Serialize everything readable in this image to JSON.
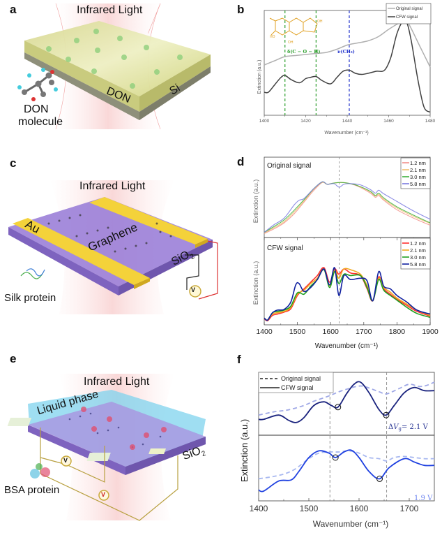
{
  "panels": {
    "a": {
      "label": "a",
      "light_label": "Infrared Light",
      "substrate_label": "Si",
      "layer_label": "DON",
      "molecule_label_line1": "DON",
      "molecule_label_line2": "molecule"
    },
    "c": {
      "label": "c",
      "light_label": "Infrared Light",
      "electrode_label": "Au",
      "sheet_label": "Graphene",
      "substrate_label": "SiO",
      "substrate_sub": "2",
      "protein_label": "Silk protein",
      "meter_label": "V"
    },
    "e": {
      "label": "e",
      "light_label": "Infrared Light",
      "liquid_label": "Liquid phase",
      "substrate_label": "SiO",
      "substrate_sub": "2",
      "protein_label": "BSA protein",
      "meter_label": "V"
    },
    "b": {
      "label": "b"
    },
    "d": {
      "label": "d"
    },
    "f": {
      "label": "f"
    }
  },
  "chart_data": [
    {
      "id": "b",
      "type": "line",
      "xlabel": "Wavenumber (cm⁻¹)",
      "ylabel": "Extinction (a.u.)",
      "xlim": [
        1400,
        1480
      ],
      "xticks": [
        1400,
        1420,
        1440,
        1460,
        1480
      ],
      "ylim": [
        0,
        1
      ],
      "legend": {
        "position": "top-right",
        "entries": [
          "Original signal",
          "CFW signal"
        ]
      },
      "annotations": [
        {
          "text": "δ(C − O − H)",
          "color": "#2a9d2a"
        },
        {
          "text": "ν(CH₃)",
          "color": "#2233cc"
        }
      ],
      "vlines": [
        {
          "x": 1410,
          "color": "#2a9d2a"
        },
        {
          "x": 1425,
          "color": "#2a9d2a"
        },
        {
          "x": 1441,
          "color": "#2233cc"
        }
      ],
      "series": [
        {
          "name": "Original signal",
          "color": "#b0b0b0",
          "x": [
            1400,
            1405,
            1410,
            1415,
            1420,
            1425,
            1430,
            1435,
            1440,
            1445,
            1450,
            1455,
            1460,
            1465,
            1468,
            1470,
            1475,
            1480
          ],
          "y": [
            0.48,
            0.52,
            0.56,
            0.57,
            0.58,
            0.59,
            0.6,
            0.63,
            0.67,
            0.69,
            0.71,
            0.75,
            0.82,
            0.88,
            0.9,
            0.86,
            0.66,
            0.46
          ]
        },
        {
          "name": "CFW signal",
          "color": "#404040",
          "x": [
            1400,
            1402,
            1405,
            1408,
            1410,
            1413,
            1417,
            1420,
            1422,
            1425,
            1428,
            1432,
            1435,
            1438,
            1441,
            1444,
            1447,
            1450,
            1454,
            1458,
            1461,
            1464,
            1467,
            1469,
            1471,
            1474,
            1477,
            1480
          ],
          "y": [
            0.22,
            0.22,
            0.29,
            0.36,
            0.38,
            0.34,
            0.31,
            0.35,
            0.36,
            0.37,
            0.33,
            0.3,
            0.36,
            0.42,
            0.43,
            0.4,
            0.39,
            0.4,
            0.42,
            0.43,
            0.55,
            0.78,
            0.9,
            0.87,
            0.7,
            0.35,
            0.08,
            0.03
          ]
        }
      ]
    },
    {
      "id": "d-top",
      "type": "line",
      "title": "Original signal",
      "ylabel": "Extinction (a.u.)",
      "xlim": [
        1400,
        1900
      ],
      "ylim": [
        0,
        1
      ],
      "vline": 1626,
      "legend": {
        "position": "top-right",
        "entries": [
          "1.2 nm",
          "2.1 nm",
          "3.0 nm",
          "5.8 nm"
        ]
      },
      "series": [
        {
          "name": "1.2 nm",
          "color": "#f2908a",
          "x": [
            1400,
            1430,
            1460,
            1490,
            1520,
            1550,
            1575,
            1590,
            1610,
            1630,
            1650,
            1680,
            1720,
            1735,
            1745,
            1760,
            1800,
            1850,
            1900
          ],
          "y": [
            0.02,
            0.1,
            0.2,
            0.35,
            0.55,
            0.75,
            0.88,
            0.85,
            0.87,
            0.88,
            0.87,
            0.82,
            0.7,
            0.63,
            0.66,
            0.58,
            0.42,
            0.28,
            0.16
          ]
        },
        {
          "name": "2.1 nm",
          "color": "#f0c070",
          "x": [
            1400,
            1430,
            1460,
            1490,
            1520,
            1550,
            1575,
            1590,
            1610,
            1630,
            1650,
            1680,
            1720,
            1735,
            1745,
            1760,
            1800,
            1850,
            1900
          ],
          "y": [
            0.03,
            0.12,
            0.22,
            0.38,
            0.57,
            0.77,
            0.88,
            0.85,
            0.87,
            0.88,
            0.87,
            0.83,
            0.72,
            0.65,
            0.68,
            0.6,
            0.45,
            0.31,
            0.19
          ]
        },
        {
          "name": "3.0 nm",
          "color": "#3cb03c",
          "x": [
            1400,
            1430,
            1460,
            1490,
            1520,
            1550,
            1575,
            1590,
            1610,
            1630,
            1650,
            1680,
            1720,
            1735,
            1745,
            1760,
            1800,
            1850,
            1900
          ],
          "y": [
            0.04,
            0.14,
            0.25,
            0.41,
            0.59,
            0.78,
            0.89,
            0.85,
            0.87,
            0.88,
            0.87,
            0.83,
            0.73,
            0.66,
            0.7,
            0.62,
            0.47,
            0.33,
            0.2
          ]
        },
        {
          "name": "5.8 nm",
          "color": "#7a7ae0",
          "x": [
            1400,
            1430,
            1460,
            1490,
            1505,
            1520,
            1550,
            1575,
            1590,
            1610,
            1626,
            1640,
            1660,
            1690,
            1720,
            1735,
            1745,
            1760,
            1800,
            1850,
            1900
          ],
          "y": [
            0.04,
            0.17,
            0.28,
            0.5,
            0.58,
            0.61,
            0.78,
            0.89,
            0.85,
            0.86,
            0.8,
            0.85,
            0.86,
            0.84,
            0.76,
            0.7,
            0.75,
            0.69,
            0.56,
            0.4,
            0.26
          ]
        }
      ]
    },
    {
      "id": "d-bottom",
      "type": "line",
      "title": "CFW signal",
      "xlabel": "Wavenumber (cm⁻¹)",
      "ylabel": "Extinction (a.u.)",
      "xlim": [
        1400,
        1900
      ],
      "xticks": [
        1400,
        1500,
        1600,
        1700,
        1800,
        1900
      ],
      "ylim": [
        0,
        1
      ],
      "vline": 1626,
      "legend": {
        "position": "top-right",
        "entries": [
          "1.2 nm",
          "2.1 nm",
          "3.0 nm",
          "5.8 nm"
        ]
      },
      "series": [
        {
          "name": "1.2 nm",
          "color": "#ff3030",
          "x": [
            1400,
            1410,
            1425,
            1440,
            1460,
            1480,
            1500,
            1520,
            1540,
            1560,
            1580,
            1597,
            1612,
            1625,
            1640,
            1660,
            1690,
            1710,
            1727,
            1745,
            1760,
            1780,
            1800,
            1830,
            1860,
            1900
          ],
          "y": [
            0.05,
            0.02,
            0.1,
            0.12,
            0.15,
            0.2,
            0.4,
            0.5,
            0.6,
            0.7,
            0.82,
            0.6,
            0.8,
            0.72,
            0.8,
            0.74,
            0.7,
            0.5,
            0.32,
            0.68,
            0.5,
            0.42,
            0.34,
            0.25,
            0.16,
            0.09
          ]
        },
        {
          "name": "2.1 nm",
          "color": "#f0a820",
          "x": [
            1400,
            1410,
            1425,
            1440,
            1460,
            1480,
            1500,
            1520,
            1540,
            1560,
            1580,
            1597,
            1612,
            1625,
            1640,
            1665,
            1690,
            1710,
            1727,
            1745,
            1760,
            1780,
            1800,
            1830,
            1860,
            1900
          ],
          "y": [
            0.06,
            0.03,
            0.12,
            0.14,
            0.16,
            0.22,
            0.42,
            0.48,
            0.58,
            0.66,
            0.8,
            0.55,
            0.78,
            0.66,
            0.8,
            0.78,
            0.72,
            0.55,
            0.32,
            0.66,
            0.52,
            0.45,
            0.36,
            0.27,
            0.18,
            0.1
          ]
        },
        {
          "name": "3.0 nm",
          "color": "#20a020",
          "x": [
            1400,
            1410,
            1425,
            1440,
            1460,
            1480,
            1500,
            1520,
            1540,
            1560,
            1580,
            1597,
            1612,
            1625,
            1640,
            1660,
            1690,
            1710,
            1727,
            1745,
            1760,
            1780,
            1800,
            1830,
            1860,
            1900
          ],
          "y": [
            0.06,
            0.03,
            0.14,
            0.16,
            0.18,
            0.24,
            0.44,
            0.42,
            0.54,
            0.64,
            0.79,
            0.52,
            0.76,
            0.58,
            0.72,
            0.7,
            0.7,
            0.52,
            0.32,
            0.64,
            0.48,
            0.4,
            0.33,
            0.22,
            0.13,
            0.07
          ]
        },
        {
          "name": "5.8 nm",
          "color": "#1020a0",
          "x": [
            1400,
            1410,
            1425,
            1440,
            1460,
            1480,
            1495,
            1505,
            1520,
            1540,
            1560,
            1580,
            1597,
            1612,
            1625,
            1640,
            1660,
            1690,
            1710,
            1727,
            1745,
            1760,
            1780,
            1800,
            1830,
            1860,
            1900
          ],
          "y": [
            0.06,
            0.03,
            0.14,
            0.18,
            0.19,
            0.3,
            0.56,
            0.58,
            0.46,
            0.52,
            0.64,
            0.8,
            0.56,
            0.82,
            0.4,
            0.7,
            0.64,
            0.66,
            0.62,
            0.32,
            0.76,
            0.54,
            0.5,
            0.4,
            0.3,
            0.18,
            0.12
          ]
        }
      ]
    },
    {
      "id": "f",
      "type": "line",
      "xlabel": "Wavenumber (cm⁻¹)",
      "ylabel": "Extinction (a.u.)",
      "xlim": [
        1400,
        1750
      ],
      "xticks": [
        1400,
        1500,
        1600,
        1700
      ],
      "ylim": [
        0,
        1
      ],
      "vlines": [
        1542,
        1655
      ],
      "legend": {
        "position": "top-left",
        "entries": [
          "Original signal",
          "CFW signal"
        ]
      },
      "subplots": [
        {
          "label": "ΔV_g= 2.1 V",
          "label_prefix": "Δ",
          "label_var": "V",
          "label_sub": "g",
          "label_suffix": "= 2.1 V",
          "color": "#1a237e",
          "dash_color": "#9fa8e6",
          "markers_x": [
            1558,
            1654
          ],
          "cfw": {
            "x": [
              1400,
              1410,
              1440,
              1460,
              1475,
              1490,
              1510,
              1530,
              1545,
              1558,
              1575,
              1590,
              1603,
              1620,
              1640,
              1654,
              1670,
              1690,
              1710,
              1730,
              1750
            ],
            "y": [
              0.22,
              0.22,
              0.3,
              0.2,
              0.16,
              0.25,
              0.48,
              0.55,
              0.48,
              0.45,
              0.7,
              0.88,
              0.92,
              0.72,
              0.4,
              0.3,
              0.48,
              0.72,
              0.82,
              0.76,
              0.76
            ]
          },
          "original": {
            "x": [
              1400,
              1430,
              1460,
              1490,
              1510,
              1540,
              1560,
              1580,
              1595,
              1610,
              1640,
              1655,
              1680,
              1700,
              1720,
              1735,
              1750
            ],
            "y": [
              0.3,
              0.36,
              0.4,
              0.48,
              0.56,
              0.66,
              0.74,
              0.8,
              0.84,
              0.84,
              0.74,
              0.7,
              0.8,
              0.88,
              0.84,
              0.86,
              0.92
            ]
          }
        },
        {
          "label": "1.9 V",
          "color": "#1e40e0",
          "dash_color": "#a8b8f0",
          "markers_x": [
            1553,
            1641
          ],
          "cfw": {
            "x": [
              1400,
              1410,
              1440,
              1465,
              1480,
              1500,
              1520,
              1540,
              1553,
              1570,
              1585,
              1600,
              1620,
              1641,
              1660,
              1690,
              1710,
              1730,
              1750
            ],
            "y": [
              0.12,
              0.1,
              0.28,
              0.3,
              0.45,
              0.7,
              0.82,
              0.78,
              0.7,
              0.8,
              0.83,
              0.7,
              0.45,
              0.32,
              0.52,
              0.68,
              0.62,
              0.56,
              0.56
            ]
          },
          "original": {
            "x": [
              1400,
              1440,
              1470,
              1500,
              1520,
              1540,
              1560,
              1580,
              1600,
              1620,
              1640,
              1655,
              1670,
              1690,
              1710,
              1730,
              1750
            ],
            "y": [
              0.32,
              0.38,
              0.48,
              0.68,
              0.78,
              0.8,
              0.8,
              0.82,
              0.78,
              0.7,
              0.68,
              0.64,
              0.7,
              0.72,
              0.7,
              0.68,
              0.68
            ]
          }
        }
      ]
    }
  ]
}
